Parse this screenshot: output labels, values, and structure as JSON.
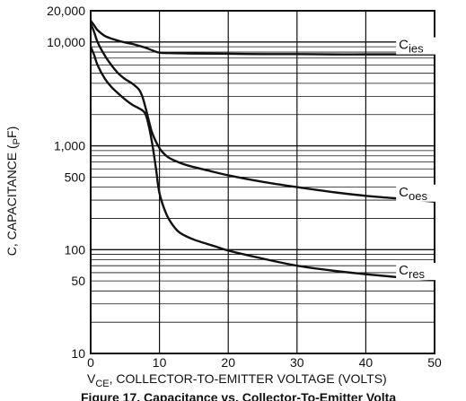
{
  "chart_data": {
    "type": "line",
    "y_scale": "log",
    "grid": true,
    "xlim": [
      0,
      50
    ],
    "ylim": [
      10,
      20000
    ],
    "x_ticks": [
      0,
      10,
      20,
      30,
      40,
      50
    ],
    "x_tick_labels": [
      "0",
      "10",
      "20",
      "30",
      "40",
      "50"
    ],
    "y_ticks": [
      10,
      50,
      100,
      500,
      1000,
      10000,
      20000
    ],
    "y_tick_labels": [
      "10",
      "50",
      "100",
      "500",
      "1,000",
      "10,000",
      "20,000"
    ],
    "xlabel": {
      "prefix": "V",
      "sub": "CE",
      "rest": ", COLLECTOR-TO-EMITTER VOLTAGE (VOLTS)"
    },
    "ylabel": {
      "main": "C, CAPACITANCE  (",
      "sub": "P",
      "rest": "F)"
    },
    "caption": "Figure 17. Capacitance vs. Collector-To-Emitter Volta",
    "series": [
      {
        "name": "Cies",
        "label_main": "C",
        "label_sub": "ies",
        "x": [
          0,
          0.5,
          1,
          2,
          3,
          4,
          5,
          6,
          7,
          8,
          9,
          10,
          12,
          15,
          20,
          25,
          30,
          35,
          40,
          45,
          50
        ],
        "y": [
          16000,
          14500,
          13000,
          11500,
          10800,
          10300,
          9900,
          9600,
          9200,
          8800,
          8300,
          7900,
          7800,
          7750,
          7700,
          7650,
          7650,
          7600,
          7600,
          7600,
          7600
        ]
      },
      {
        "name": "Coes",
        "label_main": "C",
        "label_sub": "oes",
        "x": [
          0,
          0.5,
          1,
          2,
          3,
          4,
          5,
          6,
          7,
          7.5,
          8,
          8.5,
          9,
          10,
          11,
          12,
          14,
          17,
          20,
          25,
          30,
          35,
          40,
          45,
          50
        ],
        "y": [
          15000,
          12500,
          10000,
          7500,
          6000,
          5000,
          4400,
          4000,
          3500,
          3000,
          2300,
          1700,
          1300,
          950,
          800,
          730,
          650,
          580,
          520,
          450,
          400,
          360,
          330,
          310,
          290
        ]
      },
      {
        "name": "Cres",
        "label_main": "C",
        "label_sub": "res",
        "x": [
          0,
          0.5,
          1,
          2,
          3,
          4,
          5,
          6,
          7,
          7.5,
          8,
          8.5,
          9,
          9.5,
          10,
          11,
          12,
          13,
          15,
          18,
          20,
          25,
          30,
          35,
          40,
          45,
          50
        ],
        "y": [
          9000,
          7500,
          6000,
          4500,
          3700,
          3200,
          2800,
          2500,
          2300,
          2200,
          2000,
          1500,
          1000,
          600,
          350,
          220,
          170,
          145,
          125,
          108,
          98,
          82,
          70,
          63,
          58,
          54,
          51
        ]
      }
    ]
  }
}
